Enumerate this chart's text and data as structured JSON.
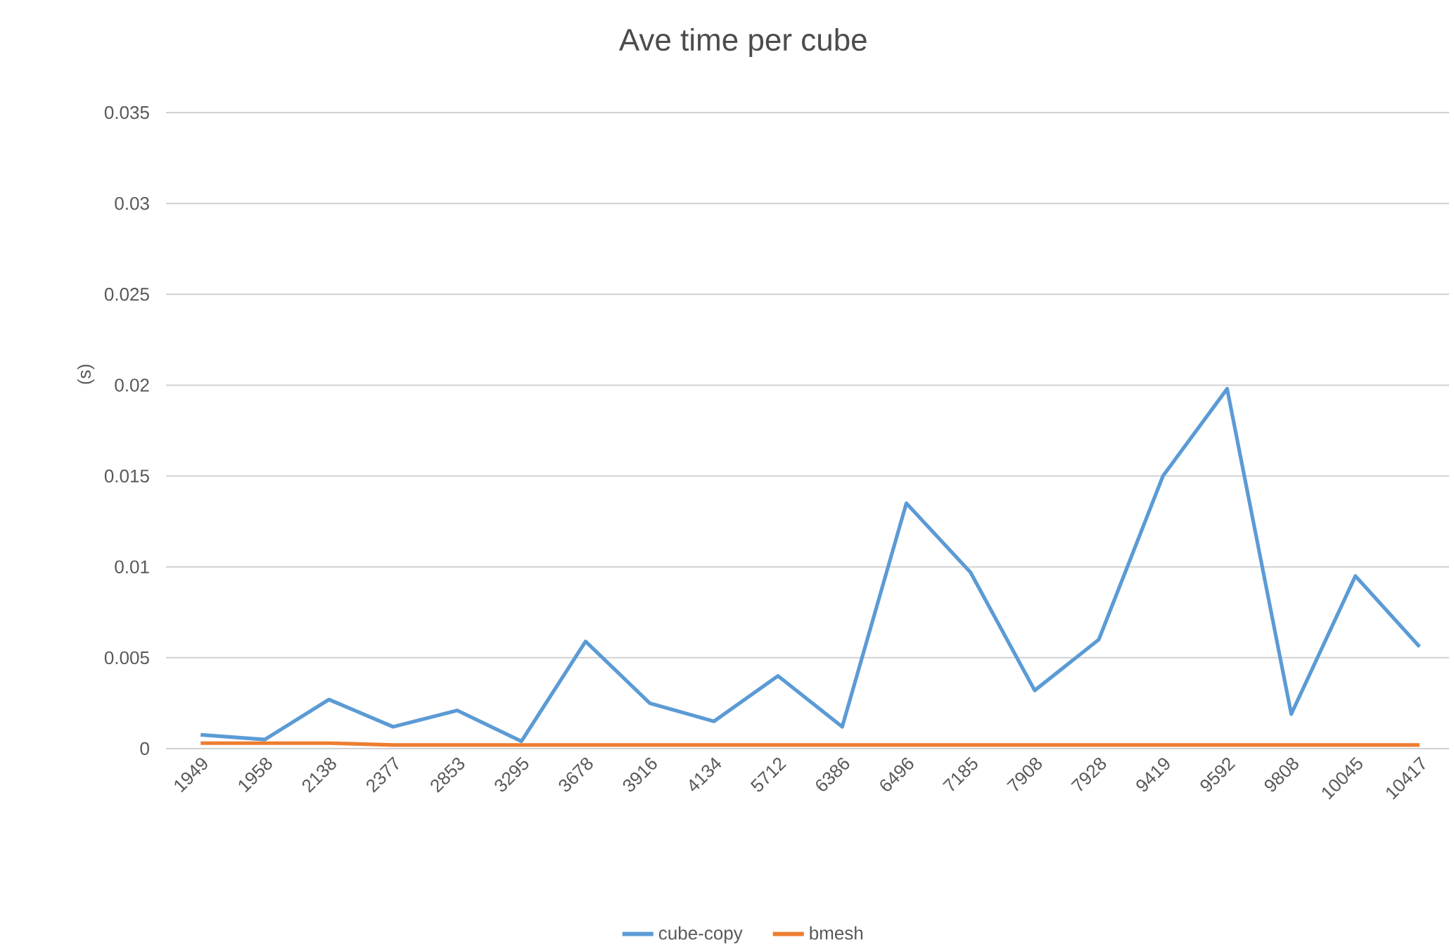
{
  "chart_data": {
    "type": "line",
    "title": "Ave time per cube",
    "ylabel": "(s)",
    "categories": [
      "1949",
      "1958",
      "2138",
      "2377",
      "2853",
      "3295",
      "3678",
      "3916",
      "4134",
      "5712",
      "6386",
      "6496",
      "7185",
      "7908",
      "7928",
      "9419",
      "9592",
      "9808",
      "10045",
      "10417"
    ],
    "series": [
      {
        "name": "cube-copy",
        "color": "#5b9bd5",
        "values": [
          0.00076,
          0.0005,
          0.0027,
          0.0012,
          0.0021,
          0.0004,
          0.0059,
          0.0025,
          0.0015,
          0.004,
          0.0012,
          0.0135,
          0.0097,
          0.0032,
          0.006,
          0.015,
          0.0198,
          0.0019,
          0.0095,
          0.0056
        ]
      },
      {
        "name": "bmesh",
        "color": "#ed7d31",
        "values": [
          0.0003,
          0.0003,
          0.0003,
          0.0002,
          0.0002,
          0.0002,
          0.0002,
          0.0002,
          0.0002,
          0.0002,
          0.0002,
          0.0002,
          0.0002,
          0.0002,
          0.0002,
          0.0002,
          0.0002,
          0.0002,
          0.0002,
          0.0002
        ]
      }
    ],
    "ylim": [
      0,
      0.035
    ],
    "yticks": [
      0,
      0.005,
      0.01,
      0.015,
      0.02,
      0.025,
      0.03,
      0.035
    ],
    "grid": "y",
    "legend": "bottom",
    "marker": "none",
    "line_style": "solid"
  }
}
